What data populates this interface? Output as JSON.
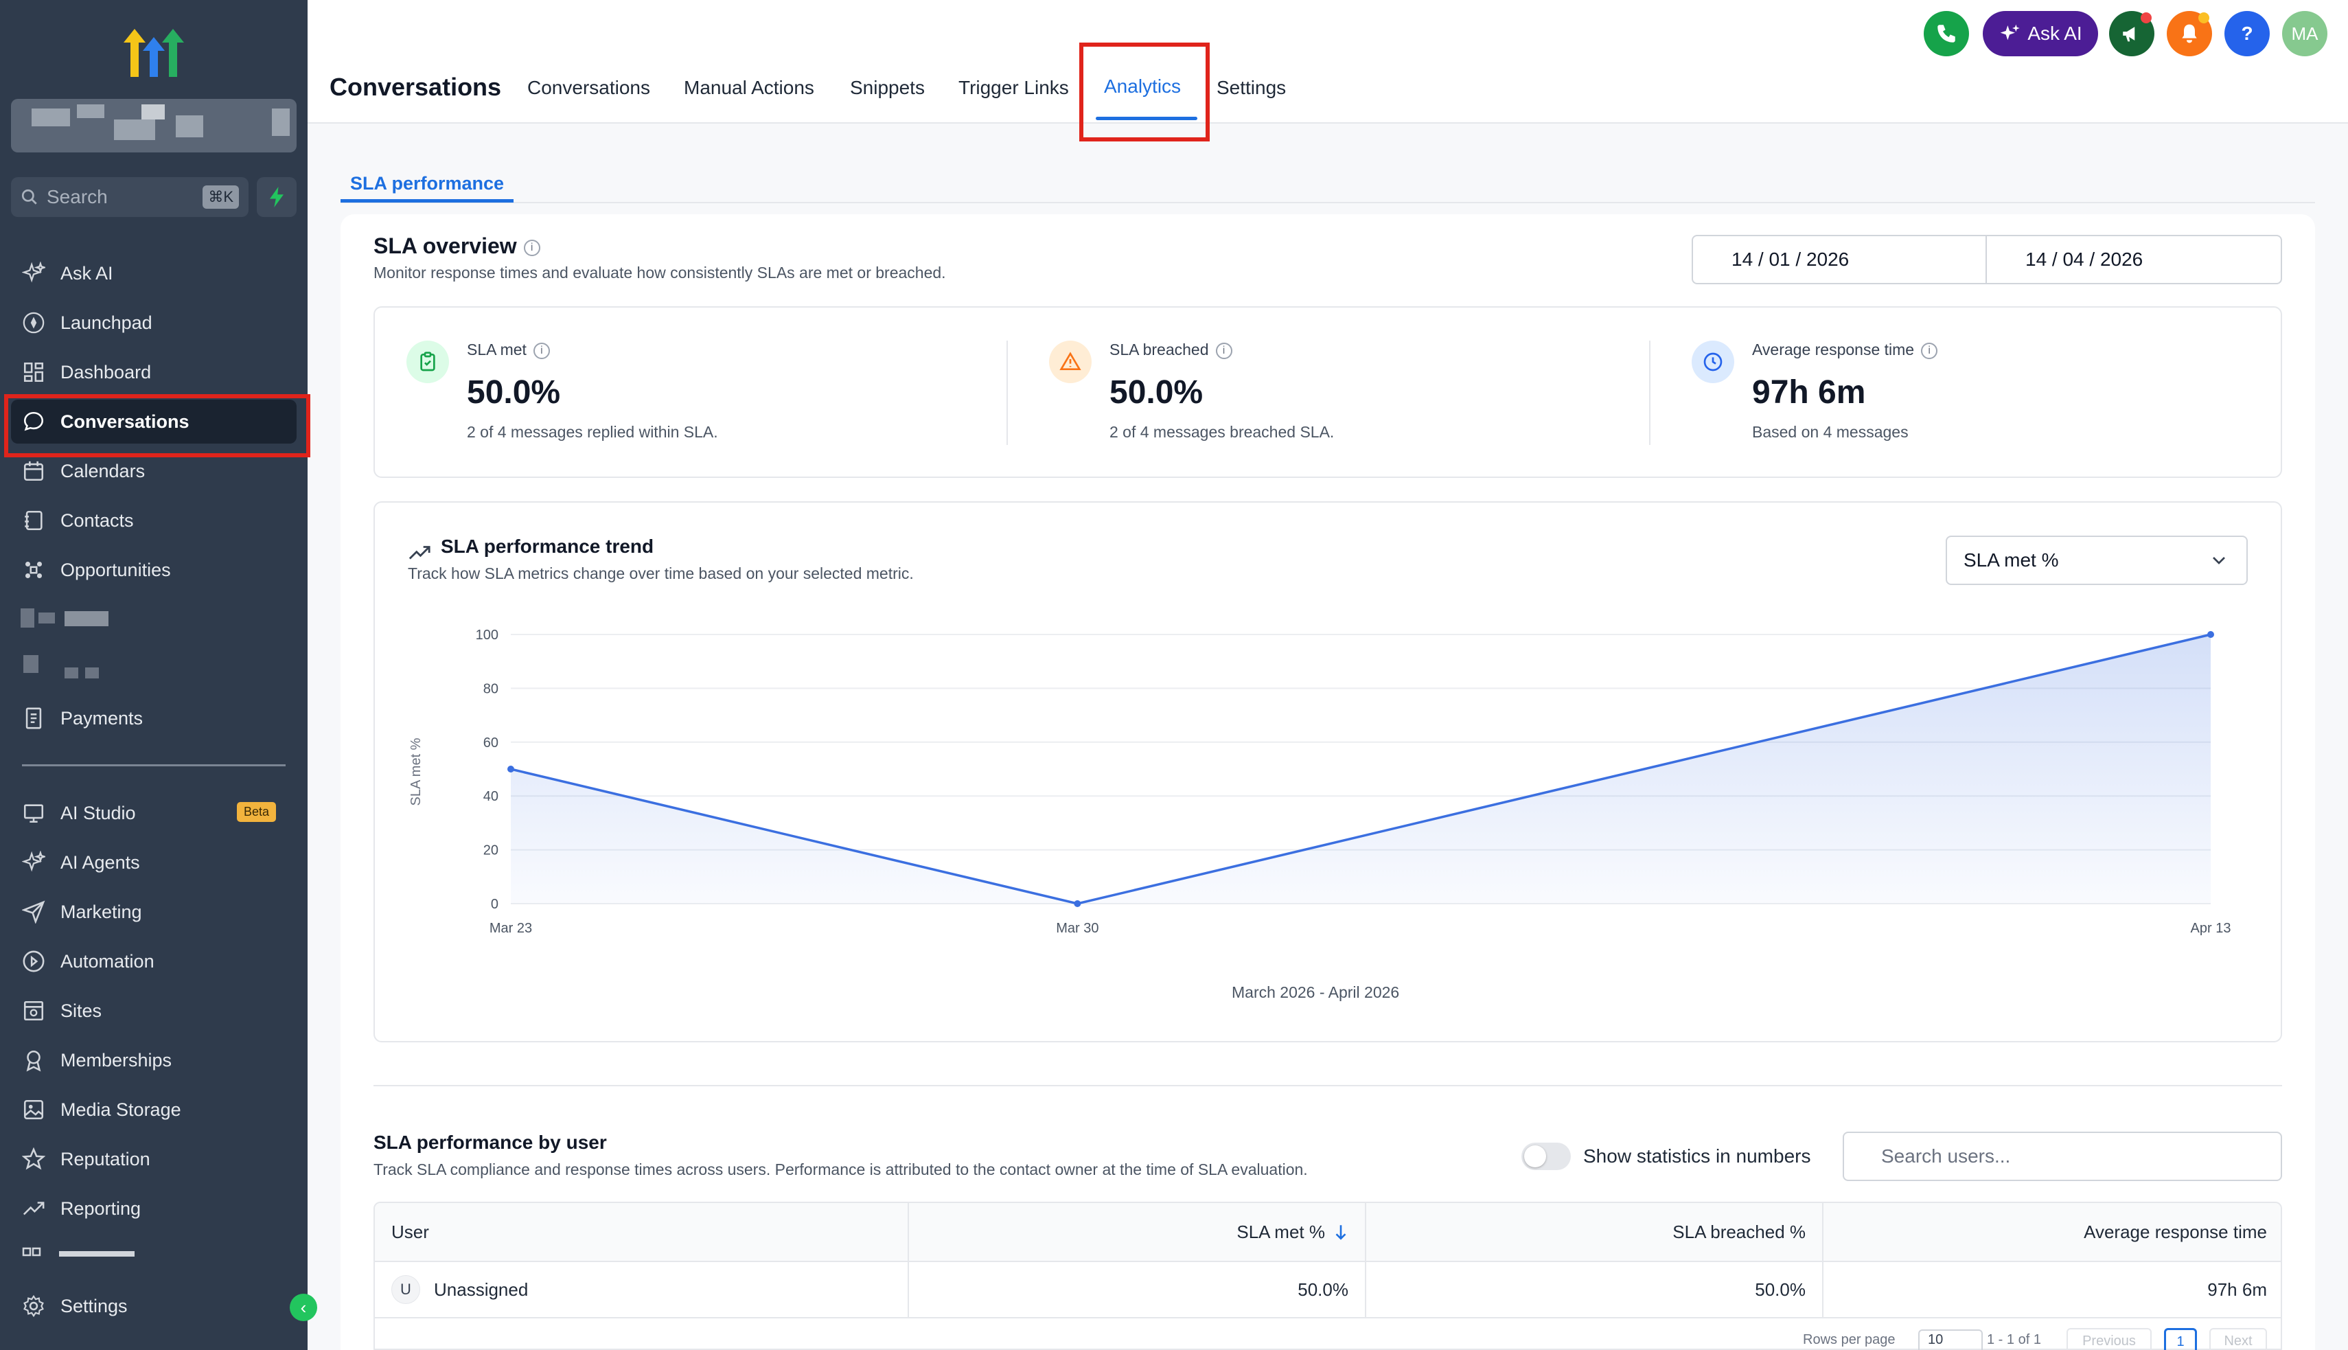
{
  "sidebar": {
    "search_label": "Search",
    "search_shortcut": "⌘K",
    "items": [
      {
        "label": "Ask AI",
        "icon": "sparkle-icon"
      },
      {
        "label": "Launchpad",
        "icon": "rocket-icon"
      },
      {
        "label": "Dashboard",
        "icon": "dashboard-icon"
      },
      {
        "label": "Conversations",
        "icon": "chat-icon"
      },
      {
        "label": "Calendars",
        "icon": "calendar-icon"
      },
      {
        "label": "Contacts",
        "icon": "contacts-icon"
      },
      {
        "label": "Opportunities",
        "icon": "opportunities-icon"
      },
      {
        "label": "Payments",
        "icon": "payments-icon"
      },
      {
        "label": "AI Studio",
        "icon": "ai-studio-icon",
        "badge": "Beta"
      },
      {
        "label": "AI Agents",
        "icon": "sparkle-icon"
      },
      {
        "label": "Marketing",
        "icon": "send-icon"
      },
      {
        "label": "Automation",
        "icon": "automation-icon"
      },
      {
        "label": "Sites",
        "icon": "sites-icon"
      },
      {
        "label": "Memberships",
        "icon": "membership-icon"
      },
      {
        "label": "Media Storage",
        "icon": "image-icon"
      },
      {
        "label": "Reputation",
        "icon": "star-icon"
      },
      {
        "label": "Reporting",
        "icon": "trend-icon"
      },
      {
        "label": "Settings",
        "icon": "gear-icon"
      }
    ]
  },
  "header": {
    "page_title": "Conversations",
    "tabs": [
      "Conversations",
      "Manual Actions",
      "Snippets",
      "Trigger Links",
      "Analytics",
      "Settings"
    ],
    "active_tab": "Analytics",
    "ask_ai_label": "Ask AI",
    "help_label": "?",
    "avatar_initials": "MA",
    "colors": {
      "phone": "#16a34a",
      "ask_ai": "#5b21b6",
      "announce": "#15803d",
      "bell": "#f97316",
      "help": "#2563eb",
      "avatar": "#86c98f"
    }
  },
  "subtab": "SLA performance",
  "overview": {
    "title": "SLA overview",
    "subtitle": "Monitor response times and evaluate how consistently SLAs are met or breached.",
    "date_from": "14 / 01 / 2026",
    "date_to": "14 / 04 / 2026",
    "stats": [
      {
        "label": "SLA met",
        "value": "50.0%",
        "desc": "2 of 4 messages replied within SLA.",
        "icon": "clipboard-check-icon",
        "color": "#16a34a"
      },
      {
        "label": "SLA breached",
        "value": "50.0%",
        "desc": "2 of 4 messages breached SLA.",
        "icon": "warning-icon",
        "color": "#f97316"
      },
      {
        "label": "Average response time",
        "value": "97h 6m",
        "desc": "Based on 4 messages",
        "icon": "clock-icon",
        "color": "#2563eb"
      }
    ]
  },
  "trend": {
    "title": "SLA performance trend",
    "subtitle": "Track how SLA metrics change over time based on your selected metric.",
    "metric_selected": "SLA met %",
    "range_label": "March 2026 - April 2026"
  },
  "chart_data": {
    "type": "area",
    "x": [
      "Mar 23",
      "Mar 30",
      "Apr 13"
    ],
    "x_days": [
      0,
      7,
      21
    ],
    "values": [
      50,
      0,
      100
    ],
    "ylabel": "SLA met %",
    "yticks": [
      0,
      20,
      40,
      60,
      80,
      100
    ],
    "ylim": [
      0,
      100
    ],
    "grid": true,
    "color": "#3b6fe0"
  },
  "by_user": {
    "title": "SLA performance by user",
    "subtitle": "Track SLA compliance and response times across users. Performance is attributed to the contact owner at the time of SLA evaluation.",
    "toggle_label": "Show statistics in numbers",
    "search_placeholder": "Search users...",
    "columns": [
      "User",
      "SLA met %",
      "SLA breached %",
      "Average response time"
    ],
    "rows": [
      {
        "initial": "U",
        "user": "Unassigned",
        "met": "50.0%",
        "breached": "50.0%",
        "avg": "97h 6m"
      }
    ],
    "pagination": {
      "rows_label": "Rows per page",
      "rows_value": "10",
      "range": "1 - 1 of 1",
      "prev": "Previous",
      "page": "1",
      "next": "Next"
    }
  }
}
